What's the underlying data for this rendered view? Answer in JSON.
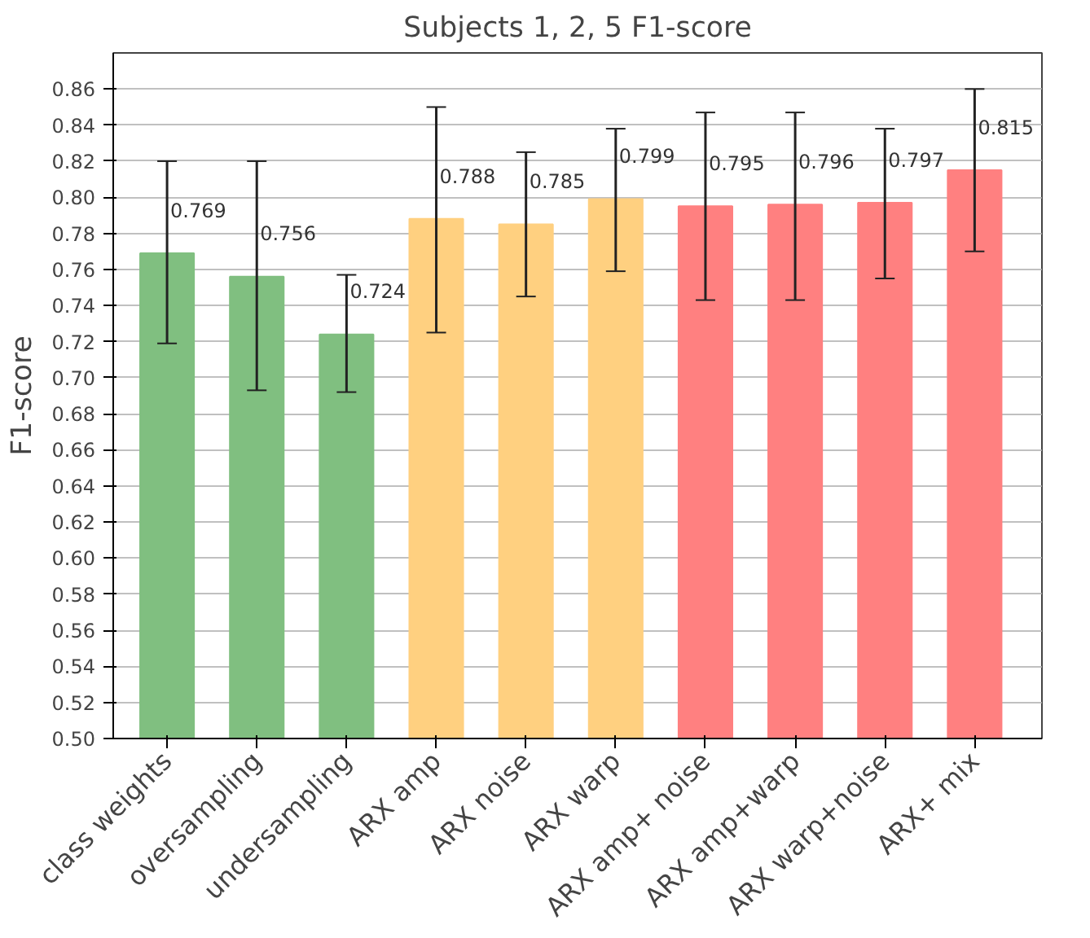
{
  "chart_data": {
    "type": "bar",
    "title": "Subjects 1, 2, 5 F1-score",
    "ylabel": "F1-score",
    "categories": [
      "class weights",
      "oversampling",
      "undersampling",
      "ARX amp",
      "ARX noise",
      "ARX warp",
      "ARX amp+ noise",
      "ARX amp+warp",
      "ARX warp+noise",
      "ARX+ mix"
    ],
    "values": [
      0.769,
      0.756,
      0.724,
      0.788,
      0.785,
      0.799,
      0.795,
      0.796,
      0.797,
      0.815
    ],
    "colors": [
      "#80bf80",
      "#80bf80",
      "#80bf80",
      "#ffd080",
      "#ffd080",
      "#ffd080",
      "#ff8080",
      "#ff8080",
      "#ff8080",
      "#ff8080"
    ],
    "errors": [
      [
        0.719,
        0.82
      ],
      [
        0.693,
        0.82
      ],
      [
        0.692,
        0.757
      ],
      [
        0.725,
        0.85
      ],
      [
        0.745,
        0.825
      ],
      [
        0.759,
        0.838
      ],
      [
        0.743,
        0.847
      ],
      [
        0.743,
        0.847
      ],
      [
        0.755,
        0.838
      ],
      [
        0.77,
        0.86
      ]
    ],
    "data_labels": true,
    "ylim": [
      0.5,
      0.88
    ],
    "yticks": [
      {
        "value": 0.5,
        "label": "0.50"
      },
      0.52,
      0.54,
      0.56,
      0.58,
      {
        "value": 0.6,
        "label": "0.60"
      },
      0.62,
      0.64,
      0.66,
      0.68,
      {
        "value": 0.7,
        "label": "0.70"
      },
      0.72,
      0.74,
      0.76,
      0.78,
      {
        "value": 0.8,
        "label": "0.80"
      },
      0.82,
      0.84,
      0.86
    ],
    "grid": "y"
  }
}
